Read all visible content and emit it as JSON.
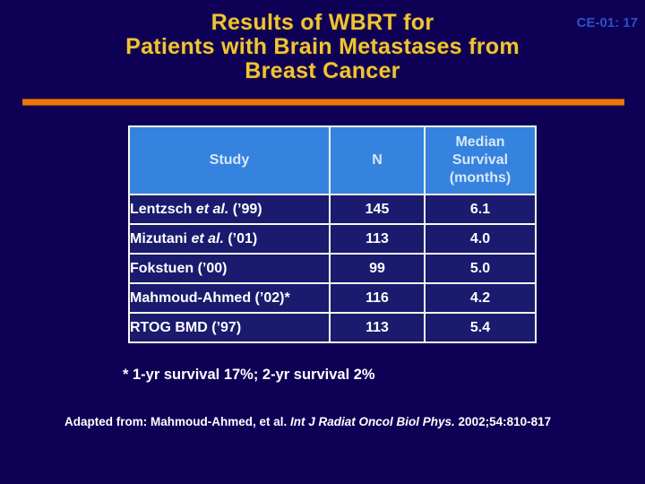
{
  "slide": {
    "code": "CE-01: 17",
    "title_lines": [
      "Results of WBRT for",
      "Patients with Brain Metastases from",
      "Breast Cancer"
    ]
  },
  "colors": {
    "background": "#0E0055",
    "title_text": "#EFC436",
    "slide_code_text": "#2E4FC5",
    "divider_orange": "#E9760E",
    "table_header_bg": "#3583DF",
    "table_header_text": "#D9E7F8",
    "table_row_bg": "#1A1A6E",
    "table_border": "#FAFAEC",
    "body_text": "#FFFFFF"
  },
  "table": {
    "columns": [
      {
        "label": "Study"
      },
      {
        "label": "N"
      },
      {
        "label": "Median Survival (months)",
        "lines": [
          "Median",
          "Survival",
          "(months)"
        ]
      }
    ],
    "rows": [
      {
        "study_pre": "Lentzsch ",
        "study_italic": "et al.",
        "study_post": " (’99)",
        "n": "145",
        "median_survival": "6.1"
      },
      {
        "study_pre": "Mizutani ",
        "study_italic": "et al.",
        "study_post": " (’01)",
        "n": "113",
        "median_survival": "4.0"
      },
      {
        "study_pre": "Fokstuen (’00)",
        "study_italic": "",
        "study_post": "",
        "n": "99",
        "median_survival": "5.0"
      },
      {
        "study_pre": "Mahmoud-Ahmed (’02)*",
        "study_italic": "",
        "study_post": "",
        "n": "116",
        "median_survival": "4.2"
      },
      {
        "study_pre": "RTOG BMD (’97)",
        "study_italic": "",
        "study_post": "",
        "n": "113",
        "median_survival": "5.4"
      }
    ]
  },
  "footnote": "* 1-yr survival 17%; 2-yr survival 2%",
  "citation": {
    "prefix": "Adapted from: Mahmoud-Ahmed, et al. ",
    "journal_italic": "Int J Radiat Oncol Biol Phys.",
    "suffix": " 2002;54:810-817"
  }
}
